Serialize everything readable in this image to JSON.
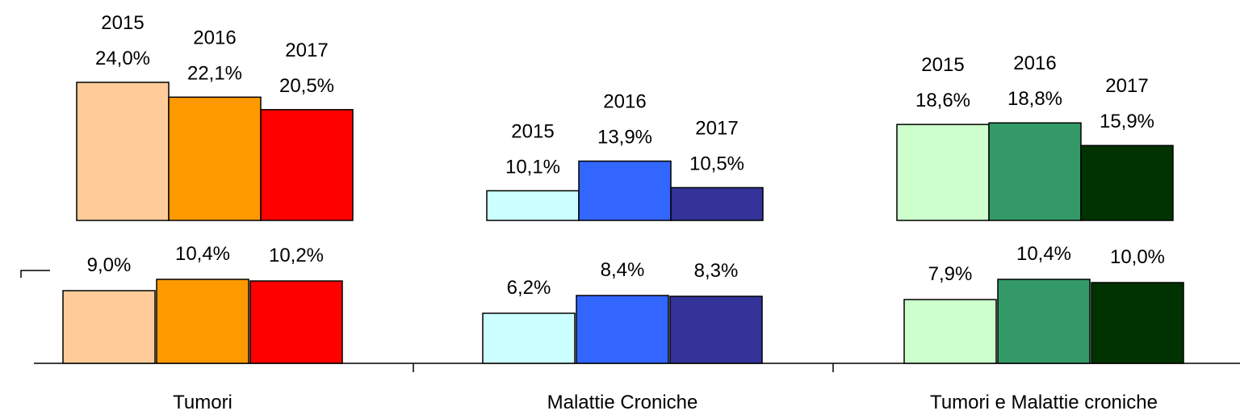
{
  "chart_data": [
    {
      "type": "bar",
      "series": [
        {
          "name": "2015",
          "color": [
            "#ffcc99",
            "#ccffff",
            "#ccffcc"
          ],
          "values": [
            24.0,
            10.1,
            18.6
          ],
          "value_labels": [
            "24,0%",
            "10,1%",
            "18,6%"
          ]
        },
        {
          "name": "2016",
          "color": [
            "#ff9900",
            "#3366ff",
            "#339966"
          ],
          "values": [
            22.1,
            13.9,
            18.8
          ],
          "value_labels": [
            "22,1%",
            "13,9%",
            "18,8%"
          ]
        },
        {
          "name": "2017",
          "color": [
            "#ff0000",
            "#333399",
            "#003300"
          ],
          "values": [
            20.5,
            10.5,
            15.9
          ],
          "value_labels": [
            "20,5%",
            "10,5%",
            "15,9%"
          ]
        }
      ],
      "ylim": [
        6.3,
        27
      ]
    },
    {
      "type": "bar",
      "categories": [
        "Tumori",
        "Malattie Croniche",
        "Tumori e Malattie croniche"
      ],
      "series": [
        {
          "color": [
            "#ffcc99",
            "#ccffff",
            "#ccffcc"
          ],
          "values": [
            9.0,
            6.2,
            7.9
          ],
          "value_labels": [
            "9,0%",
            "6,2%",
            "7,9%"
          ]
        },
        {
          "color": [
            "#ff9900",
            "#3366ff",
            "#339966"
          ],
          "values": [
            10.4,
            8.4,
            10.4
          ],
          "value_labels": [
            "10,4%",
            "8,4%",
            "10,4%"
          ]
        },
        {
          "color": [
            "#ff0000",
            "#333399",
            "#003300"
          ],
          "values": [
            10.2,
            8.3,
            10.0
          ],
          "value_labels": [
            "10,2%",
            "8,3%",
            "10,0%"
          ]
        }
      ],
      "ylim": [
        0,
        16
      ]
    }
  ]
}
